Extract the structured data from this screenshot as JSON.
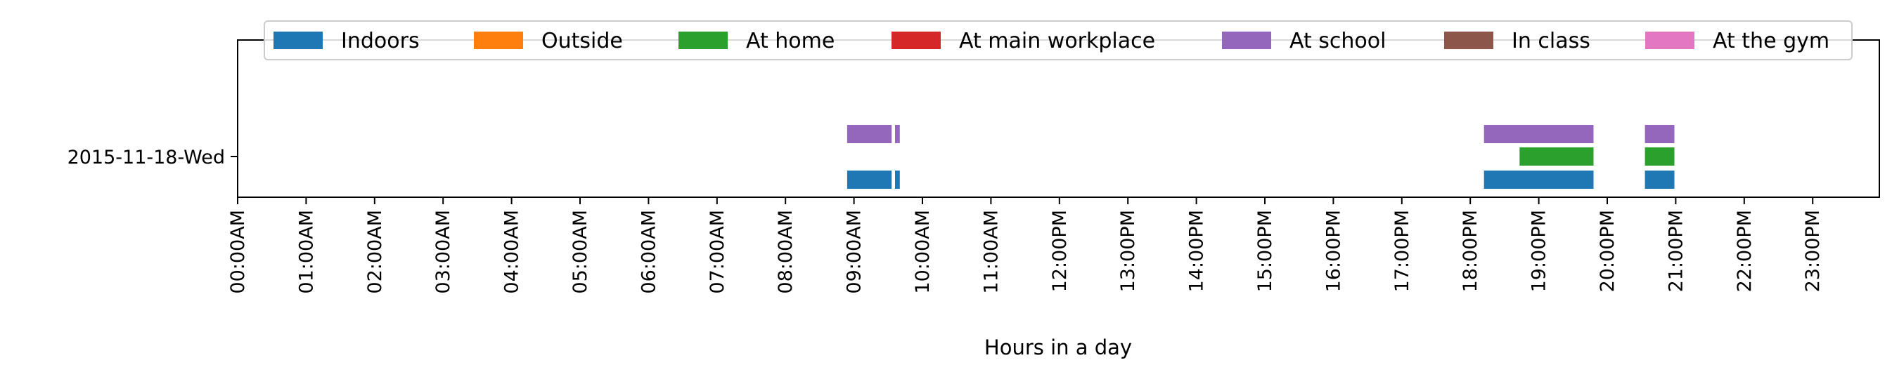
{
  "chart_data": {
    "type": "timeline",
    "xlabel": "Hours in a day",
    "ylabel": "",
    "xlim": [
      0,
      24
    ],
    "x_ticks": [
      {
        "value": 0,
        "label": "00:00AM"
      },
      {
        "value": 1,
        "label": "01:00AM"
      },
      {
        "value": 2,
        "label": "02:00AM"
      },
      {
        "value": 3,
        "label": "03:00AM"
      },
      {
        "value": 4,
        "label": "04:00AM"
      },
      {
        "value": 5,
        "label": "05:00AM"
      },
      {
        "value": 6,
        "label": "06:00AM"
      },
      {
        "value": 7,
        "label": "07:00AM"
      },
      {
        "value": 8,
        "label": "08:00AM"
      },
      {
        "value": 9,
        "label": "09:00AM"
      },
      {
        "value": 10,
        "label": "10:00AM"
      },
      {
        "value": 11,
        "label": "11:00AM"
      },
      {
        "value": 12,
        "label": "12:00PM"
      },
      {
        "value": 13,
        "label": "13:00PM"
      },
      {
        "value": 14,
        "label": "14:00PM"
      },
      {
        "value": 15,
        "label": "15:00PM"
      },
      {
        "value": 16,
        "label": "16:00PM"
      },
      {
        "value": 17,
        "label": "17:00PM"
      },
      {
        "value": 18,
        "label": "18:00PM"
      },
      {
        "value": 19,
        "label": "19:00PM"
      },
      {
        "value": 20,
        "label": "20:00PM"
      },
      {
        "value": 21,
        "label": "21:00PM"
      },
      {
        "value": 22,
        "label": "22:00PM"
      },
      {
        "value": 23,
        "label": "23:00PM"
      }
    ],
    "y_ticks": [
      "2015-11-18-Wed"
    ],
    "legend_placement": "top-center",
    "grid": false,
    "series": [
      {
        "name": "Indoors",
        "color": "#1f77b4",
        "lane": 0,
        "intervals": [
          [
            8.9,
            9.55
          ],
          [
            9.6,
            9.67
          ],
          [
            18.2,
            19.8
          ],
          [
            20.55,
            20.98
          ]
        ]
      },
      {
        "name": "Outside",
        "color": "#ff7f0e",
        "lane": 0,
        "intervals": []
      },
      {
        "name": "At home",
        "color": "#2ca02c",
        "lane": 1,
        "intervals": [
          [
            18.72,
            19.8
          ],
          [
            20.55,
            20.98
          ]
        ]
      },
      {
        "name": "At main workplace",
        "color": "#d62728",
        "lane": 1,
        "intervals": []
      },
      {
        "name": "At school",
        "color": "#9467bd",
        "lane": 2,
        "intervals": [
          [
            8.9,
            9.55
          ],
          [
            9.6,
            9.67
          ],
          [
            18.2,
            19.8
          ],
          [
            20.55,
            20.98
          ]
        ]
      },
      {
        "name": "In class",
        "color": "#8c564b",
        "lane": 2,
        "intervals": []
      },
      {
        "name": "At the gym",
        "color": "#e377c2",
        "lane": 2,
        "intervals": []
      }
    ]
  }
}
